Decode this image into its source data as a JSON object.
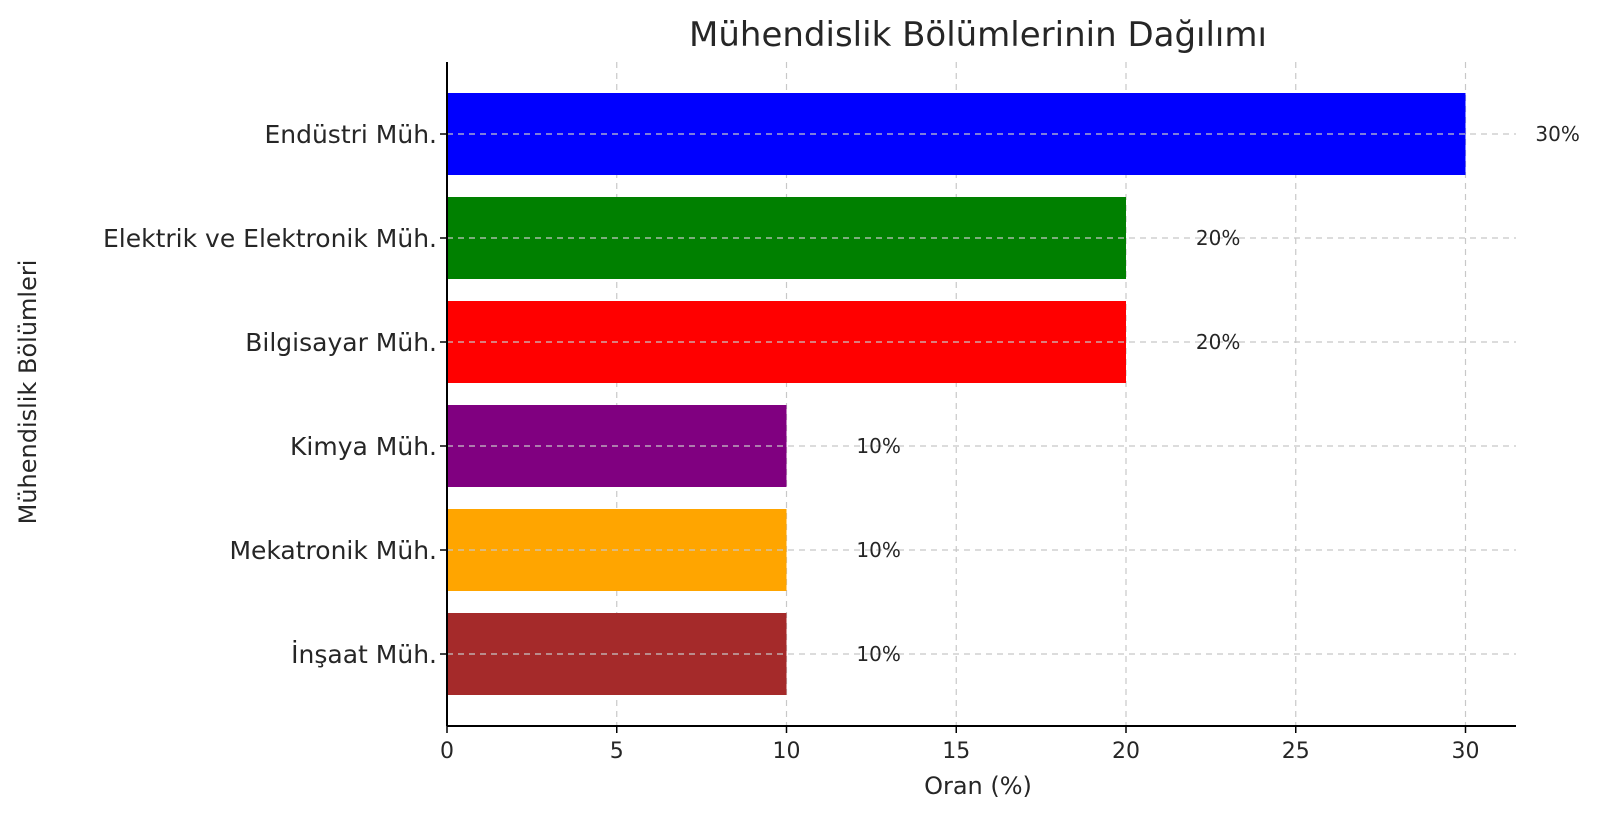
{
  "chart_data": {
    "type": "bar",
    "orientation": "horizontal",
    "title": "Mühendislik Bölümlerinin Dağılımı",
    "xlabel": "Oran (%)",
    "ylabel": "Mühendislik Bölümleri",
    "xlim": [
      0,
      31.5
    ],
    "xticks": [
      0,
      5,
      10,
      15,
      20,
      25,
      30
    ],
    "grid": true,
    "categories": [
      "Endüstri Müh.",
      "Elektrik ve Elektronik Müh.",
      "Bilgisayar Müh.",
      "Kimya Müh.",
      "Mekatronik Müh.",
      "İnşaat Müh."
    ],
    "values": [
      30,
      20,
      20,
      10,
      10,
      10
    ],
    "value_labels": [
      "30%",
      "20%",
      "20%",
      "10%",
      "10%",
      "10%"
    ],
    "colors": [
      "#0000ff",
      "#008000",
      "#ff0000",
      "#800080",
      "#ffa500",
      "#a52a2a"
    ]
  }
}
